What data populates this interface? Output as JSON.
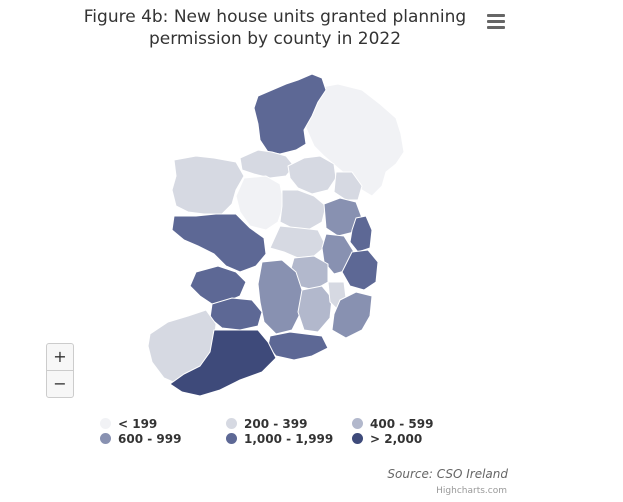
{
  "title_line1": "Figure 4b: New house units granted planning",
  "title_line2": "permission by county in 2022",
  "menu_icon": "hamburger-menu-icon",
  "zoom": {
    "in_label": "+",
    "out_label": "−"
  },
  "colors": {
    "lt199": "#f1f2f5",
    "r200_399": "#d6d9e2",
    "r400_599": "#b2b8cc",
    "r600_999": "#8891b1",
    "r1000_1999": "#5d6895",
    "gt2000": "#3e4a7a",
    "border": "#ffffff"
  },
  "legend": [
    {
      "label": "< 199",
      "color": "#f1f2f5"
    },
    {
      "label": "200 - 399",
      "color": "#d6d9e2"
    },
    {
      "label": "400 - 599",
      "color": "#b2b8cc"
    },
    {
      "label": "600 - 999",
      "color": "#8891b1"
    },
    {
      "label": "1,000 - 1,999",
      "color": "#5d6895"
    },
    {
      "label": "> 2,000",
      "color": "#3e4a7a"
    }
  ],
  "source": "Source: CSO Ireland",
  "credit": "Highcharts.com"
}
